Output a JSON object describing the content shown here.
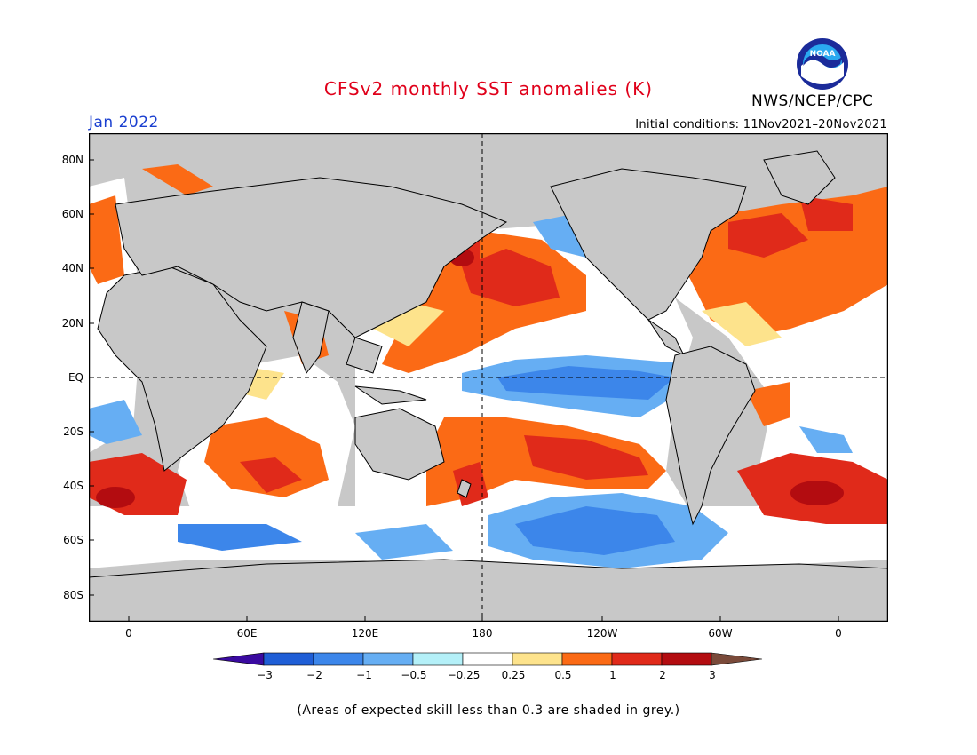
{
  "header": {
    "title": "CFSv2 monthly SST anomalies (K)",
    "agency": "NWS/NCEP/CPC",
    "logo_text": "NOAA",
    "month": "Jan 2022",
    "initial_conditions": "Initial conditions: 11Nov2021–20Nov2021"
  },
  "map": {
    "lat_labels": [
      "80N",
      "60N",
      "40N",
      "20N",
      "EQ",
      "20S",
      "40S",
      "60S",
      "80S"
    ],
    "lon_labels": [
      "0",
      "60E",
      "120E",
      "180",
      "120W",
      "60W",
      "0"
    ],
    "land_color": "#c8c8c8",
    "skill_mask_color": "#c8c8c8"
  },
  "colorbar": {
    "labels": [
      "−3",
      "−2",
      "−1",
      "−0.5",
      "−0.25",
      "0.25",
      "0.5",
      "1",
      "2",
      "3"
    ],
    "colors": [
      "#3a0aa0",
      "#1f5ed6",
      "#3c86ea",
      "#66aef3",
      "#b4f0f8",
      "#ffffff",
      "#fde38c",
      "#fb6a15",
      "#e02a1a",
      "#b30c10",
      "#7a4a3a"
    ]
  },
  "footnote": "(Areas of expected skill less than 0.3 are shaded in grey.)"
}
